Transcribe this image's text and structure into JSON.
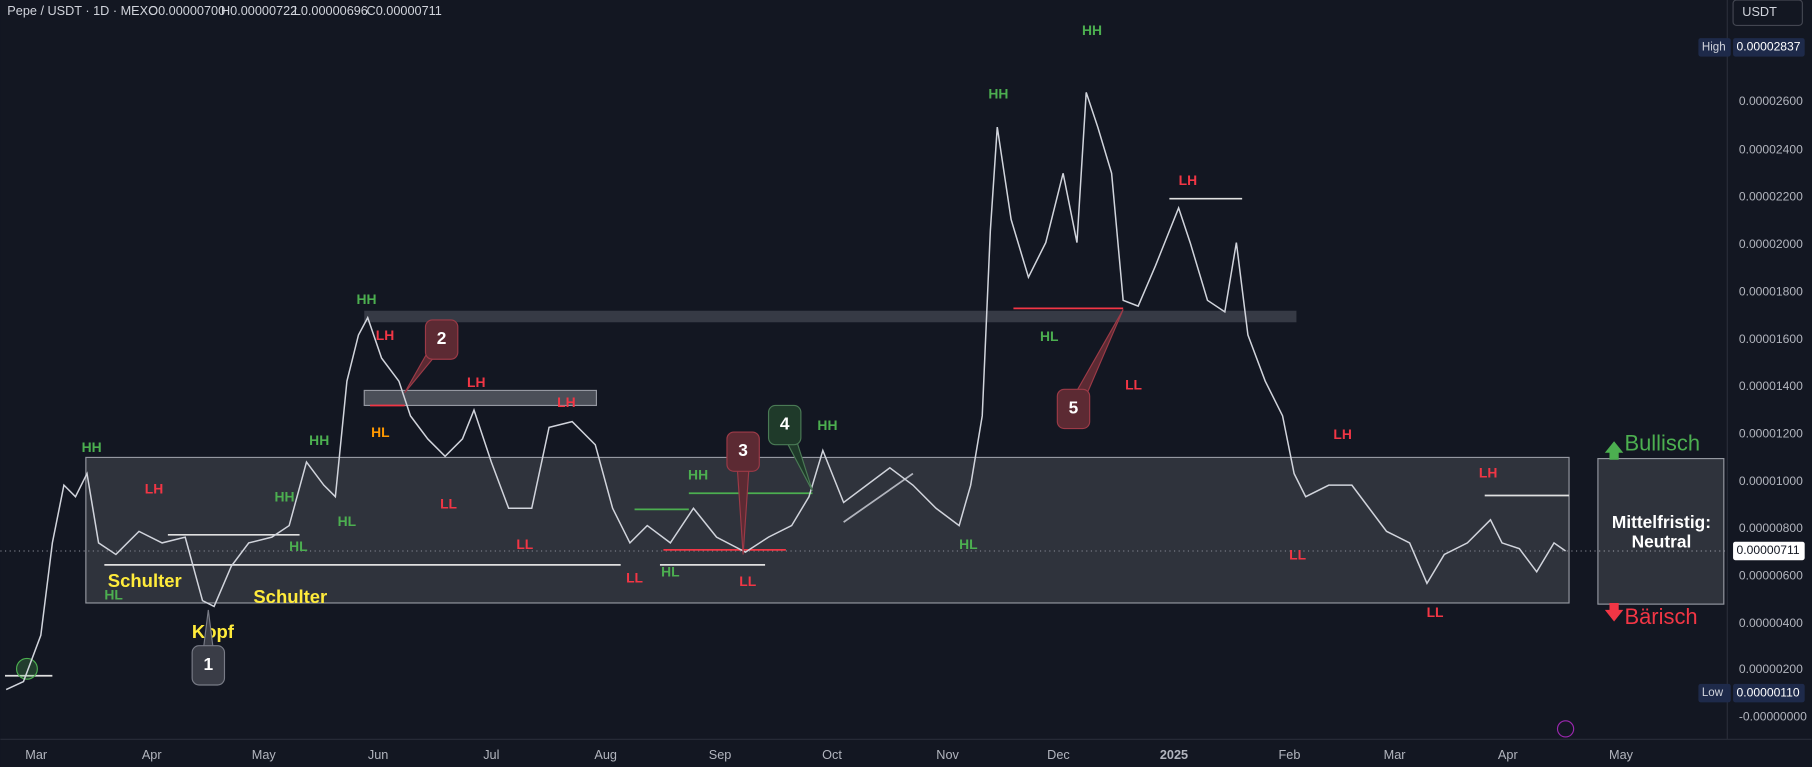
{
  "header": {
    "symbol": "Pepe / USDT · 1D · MEXC",
    "ohlc": [
      "O0.00000700",
      "H0.00000722",
      "L0.00000696",
      "C0.00000711"
    ],
    "currency_button": "USDT"
  },
  "price_axis": {
    "labels": [
      "0.00002600",
      "0.00002400",
      "0.00002200",
      "0.00002000",
      "0.00001800",
      "0.00001600",
      "0.00001400",
      "0.00001200",
      "0.00001000",
      "0.00000800",
      "0.00000600",
      "0.00000400",
      "0.00000200",
      "-0.00000000"
    ],
    "high": {
      "label": "High",
      "value": "0.00002837"
    },
    "low": {
      "label": "Low",
      "value": "0.00000110"
    },
    "current": "0.00000711"
  },
  "time_axis": {
    "labels": [
      "Mar",
      "Apr",
      "May",
      "Jun",
      "Jul",
      "Aug",
      "Sep",
      "Oct",
      "Nov",
      "Dec",
      "2025",
      "Feb",
      "Mar",
      "Apr",
      "May"
    ]
  },
  "annotations": [
    "HH",
    "LH",
    "HL",
    "Schulter",
    "Kopf",
    "Schulter",
    "HH",
    "HL",
    "HH",
    "HL",
    "HH",
    "LH",
    "HL",
    "LH",
    "LL",
    "LH",
    "LL",
    "LL",
    "HL",
    "HH",
    "LL",
    "HH",
    "HL",
    "HH",
    "HL",
    "HH",
    "LL",
    "LH",
    "LL",
    "LH",
    "LH",
    "LL"
  ],
  "callouts": [
    "1",
    "2",
    "3",
    "4",
    "5"
  ],
  "outlook": {
    "bullish": "Bullisch",
    "neutral": [
      "Mittelfristig:",
      "Neutral"
    ],
    "bearish": "Bärisch"
  }
}
